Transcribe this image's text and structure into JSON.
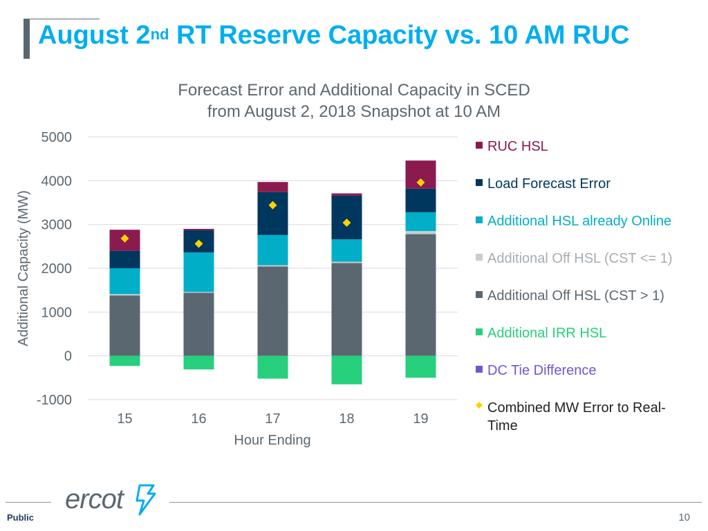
{
  "slide": {
    "title_main": "August 2",
    "title_sup": "nd",
    "title_rest": " RT Reserve Capacity vs. 10 AM RUC",
    "logo_text": "ercot",
    "classification": "Public",
    "page_number": "10"
  },
  "colors": {
    "title": "#00aeef",
    "ruc_hsl": "#8b1a4f",
    "load_forecast_error": "#00375e",
    "additional_hsl_online": "#00aec7",
    "off_hsl_cst_le1": "#c9cdd0",
    "off_hsl_cst_gt1": "#5b6770",
    "irr_hsl": "#26d07c",
    "dc_tie": "#6a5acd",
    "combined_error": "#ffd200"
  },
  "chart_data": {
    "type": "bar",
    "stacked": true,
    "title_lines": [
      "Forecast Error and Additional Capacity in SCED",
      "from August 2, 2018 Snapshot at 10 AM"
    ],
    "xlabel": "Hour Ending",
    "ylabel": "Additional Capacity (MW)",
    "ylim": [
      -1000,
      5000
    ],
    "yticks": [
      5000,
      4000,
      3000,
      2000,
      1000,
      0,
      -1000
    ],
    "categories": [
      "15",
      "16",
      "17",
      "18",
      "19"
    ],
    "series": [
      {
        "name": "RUC HSL",
        "key": "ruc_hsl",
        "values": [
          480,
          30,
          230,
          50,
          640
        ]
      },
      {
        "name": "Load Forecast Error",
        "key": "load_forecast_error",
        "values": [
          400,
          510,
          980,
          1000,
          540
        ]
      },
      {
        "name": "Additional HSL already Online",
        "key": "additional_hsl_online",
        "values": [
          590,
          900,
          690,
          510,
          430
        ]
      },
      {
        "name": "Additional Off HSL (CST <= 1)",
        "key": "off_hsl_cst_le1",
        "values": [
          30,
          20,
          30,
          30,
          70
        ]
      },
      {
        "name": "Additional Off HSL (CST > 1)",
        "key": "off_hsl_cst_gt1",
        "values": [
          1380,
          1440,
          2040,
          2120,
          2780
        ]
      },
      {
        "name": "Additional IRR HSL",
        "key": "irr_hsl",
        "values": [
          -230,
          -310,
          -520,
          -650,
          -500
        ]
      },
      {
        "name": "DC Tie Difference",
        "key": "dc_tie",
        "values": [
          0,
          0,
          0,
          0,
          0
        ]
      }
    ],
    "combined_error": {
      "name": "Combined MW Error to Real-Time",
      "key": "combined_error",
      "values": [
        2680,
        2560,
        3440,
        3040,
        3960
      ]
    },
    "legend_position": "right"
  }
}
